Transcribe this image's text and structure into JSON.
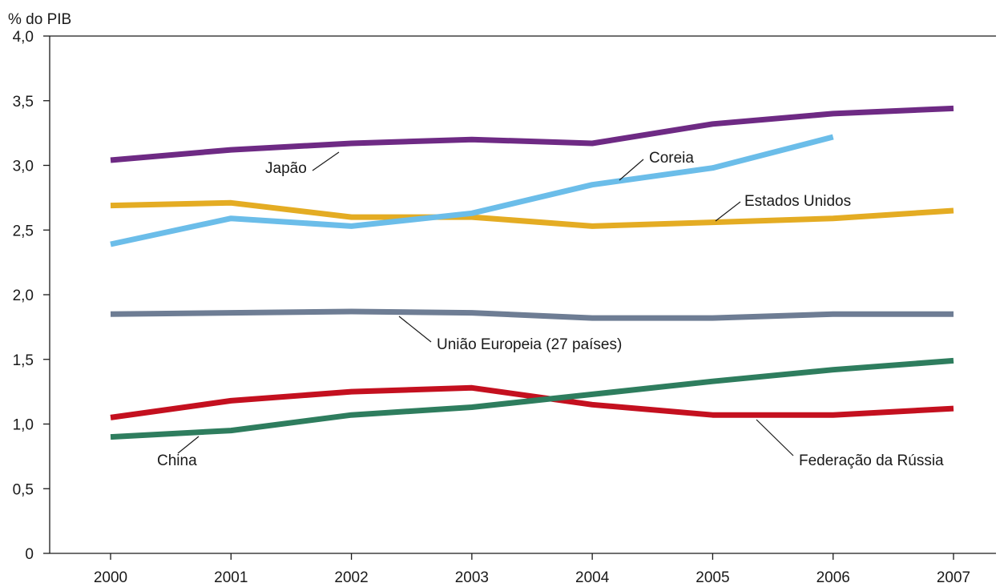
{
  "chart_data": {
    "type": "line",
    "title": "",
    "ylabel": "% do PIB",
    "xlabel": "",
    "x": [
      "2000",
      "2001",
      "2002",
      "2003",
      "2004",
      "2005",
      "2006",
      "2007"
    ],
    "y_ticks": [
      "0",
      "0,5",
      "1,0",
      "1,5",
      "2,0",
      "2,5",
      "3,0",
      "3,5",
      "4,0"
    ],
    "ylim": [
      0,
      4.0
    ],
    "grid": false,
    "legend": "inline labels",
    "series": [
      {
        "name": "Japão",
        "color": "#6e2a84",
        "values": [
          3.04,
          3.12,
          3.17,
          3.2,
          3.17,
          3.32,
          3.4,
          3.44
        ]
      },
      {
        "name": "Coreia",
        "color": "#6bbde9",
        "values": [
          2.39,
          2.59,
          2.53,
          2.63,
          2.85,
          2.98,
          3.22,
          null
        ]
      },
      {
        "name": "Estados Unidos",
        "color": "#e4ac23",
        "values": [
          2.69,
          2.71,
          2.6,
          2.6,
          2.53,
          2.56,
          2.59,
          2.65
        ]
      },
      {
        "name": "União Europeia (27 países)",
        "color": "#6e7d94",
        "values": [
          1.85,
          1.86,
          1.87,
          1.86,
          1.82,
          1.82,
          1.85,
          1.85
        ]
      },
      {
        "name": "China",
        "color": "#2e7d5e",
        "values": [
          0.9,
          0.95,
          1.07,
          1.13,
          1.23,
          1.33,
          1.42,
          1.49
        ]
      },
      {
        "name": "Federação da Rússia",
        "color": "#c4101f",
        "values": [
          1.05,
          1.18,
          1.25,
          1.28,
          1.15,
          1.07,
          1.07,
          1.12
        ]
      }
    ]
  }
}
